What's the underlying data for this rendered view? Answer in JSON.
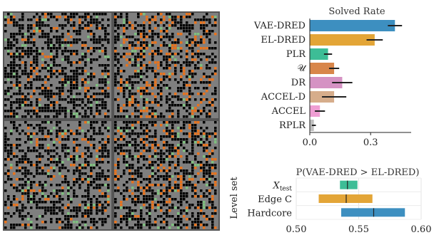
{
  "figure": {
    "panels_label": "",
    "colors": {
      "maze_floor": "#7f7f7f",
      "maze_wall": "#000000",
      "maze_lava": "#e8731c",
      "maze_grass": "#7fbf7f",
      "maze_border": "#555555"
    }
  },
  "chart_data": [
    {
      "type": "bar",
      "orientation": "horizontal",
      "title": "Solved Rate",
      "categories": [
        "VAE-DRED",
        "EL-DRED",
        "PLR",
        "𝒰",
        "DR",
        "ACCEL-D",
        "ACCEL",
        "RPLR"
      ],
      "values": [
        0.42,
        0.32,
        0.09,
        0.12,
        0.16,
        0.12,
        0.05,
        0.02
      ],
      "error": [
        0.035,
        0.04,
        0.02,
        0.025,
        0.05,
        0.06,
        0.025,
        0.01
      ],
      "colors": [
        "#3d8fc0",
        "#e3a537",
        "#3dbd96",
        "#d8864a",
        "#d592c3",
        "#d6ad8b",
        "#ef9ed3",
        "#bfbfbf"
      ],
      "xlim": [
        0,
        0.5
      ],
      "xticks": [
        "0.0",
        "0.3"
      ],
      "xtick_values": [
        0.0,
        0.3
      ],
      "xlabel": "",
      "ylabel": "",
      "grid": false
    },
    {
      "type": "bar",
      "orientation": "horizontal",
      "subtype": "interval",
      "title": "P(VAE-DRED > EL-DRED)",
      "ylabel": "Level set",
      "categories": [
        "X_test",
        "Edge C",
        "Hardcore"
      ],
      "category_display": [
        {
          "main": "X",
          "sub": "test"
        },
        {
          "main": "Edge C",
          "sub": ""
        },
        {
          "main": "Hardcore",
          "sub": ""
        }
      ],
      "intervals": [
        [
          0.535,
          0.549
        ],
        [
          0.518,
          0.561
        ],
        [
          0.536,
          0.587
        ]
      ],
      "medians": [
        0.541,
        0.54,
        0.562
      ],
      "colors": [
        "#3dbd96",
        "#e3a537",
        "#3d8fc0"
      ],
      "xlim": [
        0.5,
        0.6
      ],
      "xticks": [
        "0.50",
        "0.55",
        "0.60"
      ],
      "xtick_values": [
        0.5,
        0.55,
        0.6
      ],
      "grid": true
    }
  ]
}
